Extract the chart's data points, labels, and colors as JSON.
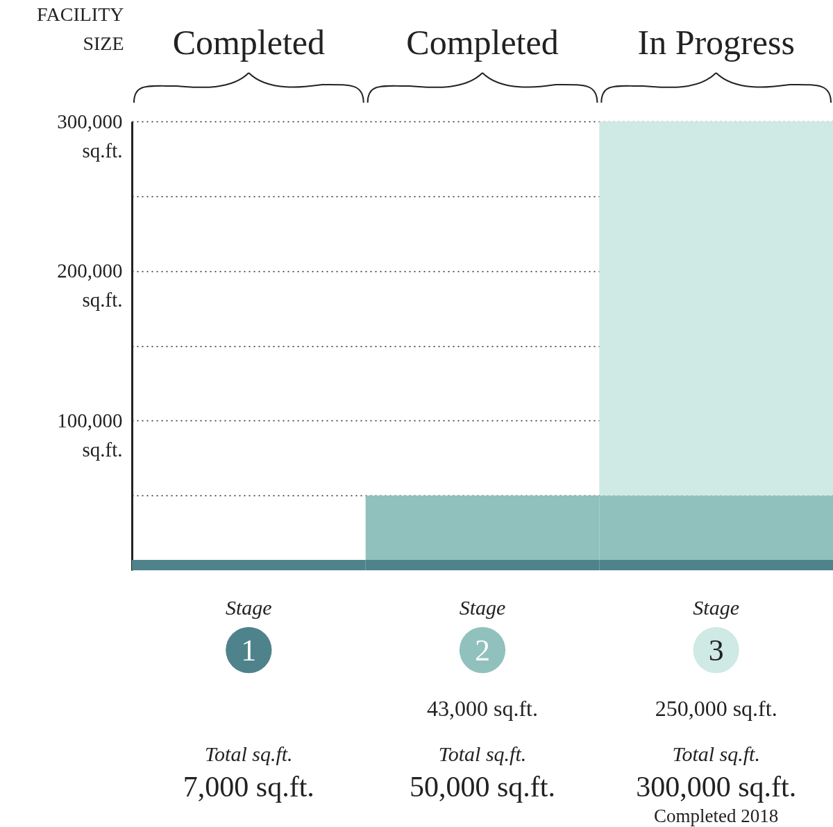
{
  "chart_data": {
    "type": "bar",
    "stacked": true,
    "ylabel": "FACILITY SIZE",
    "categories": [
      "1",
      "2",
      "3"
    ],
    "series": [
      {
        "color": "#4f838b",
        "values": [
          7000,
          7000,
          7000
        ]
      },
      {
        "color": "#90c1bd",
        "values": [
          null,
          43000,
          43000
        ]
      },
      {
        "color": "#cfe9e4",
        "values": [
          null,
          null,
          250000
        ]
      }
    ],
    "ylim": [
      0,
      300000
    ],
    "yticks": [
      {
        "value": 50000,
        "label": null
      },
      {
        "value": 100000,
        "label": "100,000 sq.ft."
      },
      {
        "value": 150000,
        "label": null
      },
      {
        "value": 200000,
        "label": "200,000 sq.ft."
      },
      {
        "value": 250000,
        "label": null
      },
      {
        "value": 300000,
        "label": "300,000 sq.ft."
      }
    ],
    "grid": "y",
    "annotations": [
      "Completed",
      "Completed",
      "In Progress",
      "Stage",
      "Stage",
      "Stage",
      "43,000 sq.ft.",
      "250,000 sq.ft.",
      "Total sq.ft.",
      "Total sq.ft.",
      "Total sq.ft.",
      "7,000 sq.ft.",
      "50,000 sq.ft.",
      "300,000 sq.ft.",
      "Completed 2018"
    ]
  }
}
